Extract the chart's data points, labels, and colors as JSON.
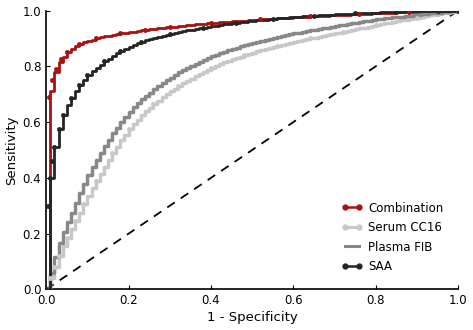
{
  "title": "",
  "xlabel": "1 - Specificity",
  "ylabel": "Sensitivity",
  "xlim": [
    0.0,
    1.0
  ],
  "ylim": [
    0.0,
    1.0
  ],
  "xticks": [
    0.0,
    0.2,
    0.4,
    0.6,
    0.8,
    1.0
  ],
  "yticks": [
    0.0,
    0.2,
    0.4,
    0.6,
    0.8,
    1.0
  ],
  "legend_labels": [
    "Combination",
    "Serum CC16",
    "Plasma FIB",
    "SAA"
  ],
  "line_colors": [
    "#AA1111",
    "#C8C8C8",
    "#888888",
    "#252525"
  ],
  "background_color": "#ffffff",
  "curve_combination": {
    "fpr": [
      0.0,
      0.003,
      0.005,
      0.007,
      0.01,
      0.012,
      0.015,
      0.018,
      0.02,
      0.023,
      0.025,
      0.03,
      0.035,
      0.04,
      0.045,
      0.05,
      0.06,
      0.07,
      0.08,
      0.09,
      0.1,
      0.12,
      0.14,
      0.16,
      0.18,
      0.2,
      0.22,
      0.24,
      0.26,
      0.28,
      0.3,
      0.33,
      0.36,
      0.4,
      0.44,
      0.48,
      0.52,
      0.56,
      0.6,
      0.64,
      0.68,
      0.72,
      0.76,
      0.8,
      0.84,
      0.88,
      0.92,
      0.96,
      1.0
    ],
    "tpr": [
      0.0,
      0.62,
      0.66,
      0.69,
      0.71,
      0.73,
      0.75,
      0.77,
      0.78,
      0.79,
      0.8,
      0.815,
      0.825,
      0.835,
      0.845,
      0.85,
      0.862,
      0.872,
      0.88,
      0.886,
      0.892,
      0.9,
      0.907,
      0.913,
      0.918,
      0.922,
      0.927,
      0.931,
      0.935,
      0.938,
      0.941,
      0.945,
      0.95,
      0.955,
      0.96,
      0.964,
      0.968,
      0.972,
      0.976,
      0.979,
      0.982,
      0.985,
      0.988,
      0.99,
      0.993,
      0.995,
      0.997,
      0.999,
      1.0
    ]
  },
  "curve_serum_cc16": {
    "fpr": [
      0.0,
      0.005,
      0.01,
      0.015,
      0.02,
      0.025,
      0.03,
      0.04,
      0.05,
      0.06,
      0.07,
      0.08,
      0.09,
      0.1,
      0.12,
      0.14,
      0.16,
      0.18,
      0.2,
      0.23,
      0.26,
      0.29,
      0.32,
      0.36,
      0.4,
      0.44,
      0.48,
      0.52,
      0.56,
      0.6,
      0.64,
      0.68,
      0.72,
      0.76,
      0.8,
      0.85,
      0.9,
      0.95,
      1.0
    ],
    "tpr": [
      0.0,
      0.02,
      0.04,
      0.06,
      0.08,
      0.1,
      0.12,
      0.155,
      0.185,
      0.215,
      0.245,
      0.275,
      0.305,
      0.335,
      0.39,
      0.44,
      0.49,
      0.535,
      0.575,
      0.625,
      0.665,
      0.7,
      0.73,
      0.765,
      0.795,
      0.82,
      0.84,
      0.858,
      0.874,
      0.888,
      0.9,
      0.912,
      0.924,
      0.936,
      0.948,
      0.962,
      0.975,
      0.988,
      1.0
    ]
  },
  "curve_plasma_fib": {
    "fpr": [
      0.0,
      0.005,
      0.01,
      0.015,
      0.02,
      0.025,
      0.03,
      0.04,
      0.05,
      0.06,
      0.07,
      0.08,
      0.09,
      0.1,
      0.12,
      0.14,
      0.16,
      0.18,
      0.2,
      0.23,
      0.26,
      0.29,
      0.32,
      0.36,
      0.4,
      0.44,
      0.48,
      0.52,
      0.56,
      0.6,
      0.64,
      0.68,
      0.72,
      0.76,
      0.8,
      0.85,
      0.9,
      0.95,
      1.0
    ],
    "tpr": [
      0.0,
      0.03,
      0.06,
      0.09,
      0.115,
      0.14,
      0.165,
      0.205,
      0.24,
      0.275,
      0.31,
      0.345,
      0.378,
      0.41,
      0.465,
      0.515,
      0.56,
      0.6,
      0.638,
      0.682,
      0.718,
      0.75,
      0.778,
      0.81,
      0.836,
      0.858,
      0.876,
      0.892,
      0.906,
      0.918,
      0.929,
      0.939,
      0.949,
      0.959,
      0.968,
      0.977,
      0.985,
      0.993,
      1.0
    ]
  },
  "curve_saa": {
    "fpr": [
      0.0,
      0.003,
      0.005,
      0.007,
      0.01,
      0.012,
      0.015,
      0.018,
      0.02,
      0.025,
      0.03,
      0.035,
      0.04,
      0.05,
      0.06,
      0.07,
      0.08,
      0.09,
      0.1,
      0.12,
      0.14,
      0.16,
      0.18,
      0.2,
      0.23,
      0.26,
      0.3,
      0.34,
      0.38,
      0.42,
      0.46,
      0.5,
      0.55,
      0.6,
      0.65,
      0.7,
      0.75,
      0.8,
      0.85,
      0.9,
      0.95,
      1.0
    ],
    "tpr": [
      0.0,
      0.22,
      0.3,
      0.36,
      0.4,
      0.43,
      0.46,
      0.49,
      0.51,
      0.545,
      0.575,
      0.6,
      0.625,
      0.66,
      0.688,
      0.712,
      0.732,
      0.75,
      0.768,
      0.795,
      0.818,
      0.838,
      0.855,
      0.87,
      0.888,
      0.902,
      0.917,
      0.929,
      0.939,
      0.948,
      0.956,
      0.963,
      0.971,
      0.977,
      0.982,
      0.986,
      0.99,
      0.993,
      0.996,
      0.998,
      0.999,
      1.0
    ]
  }
}
